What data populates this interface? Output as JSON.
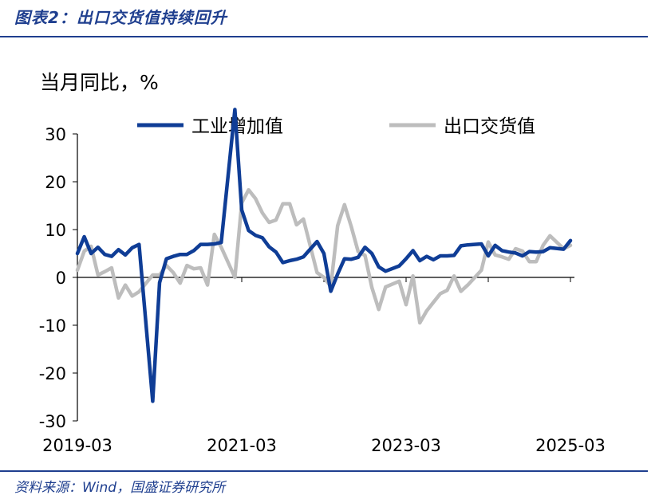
{
  "figure": {
    "title": "图表2：出口交货值持续回升",
    "source": "资料来源：Wind，国盛证券研究所"
  },
  "colors": {
    "accent": "#1f3f8f",
    "series_blue": "#0f3d96",
    "series_gray": "#bdbdbd",
    "axis": "#000000"
  },
  "chart_data": {
    "type": "line",
    "unit_label": "当月同比，%",
    "ylim": [
      -30,
      30
    ],
    "yticks": [
      -30,
      -20,
      -10,
      0,
      10,
      20,
      30
    ],
    "x_ticks_shown": [
      "2019-03",
      "2021-03",
      "2023-03",
      "2025-03"
    ],
    "x_range": [
      "2019-03",
      "2025-03"
    ],
    "grid": false,
    "legend_position": "top",
    "series": [
      {
        "name": "工业增加值",
        "color": "#0f3d96",
        "points": [
          [
            "2019-03",
            5.0
          ],
          [
            "2019-04",
            8.5
          ],
          [
            "2019-05",
            5.0
          ],
          [
            "2019-06",
            6.3
          ],
          [
            "2019-07",
            4.8
          ],
          [
            "2019-08",
            4.4
          ],
          [
            "2019-09",
            5.8
          ],
          [
            "2019-10",
            4.7
          ],
          [
            "2019-11",
            6.2
          ],
          [
            "2019-12",
            6.9
          ],
          [
            "2020-02",
            -25.9
          ],
          [
            "2020-03",
            -1.1
          ],
          [
            "2020-04",
            3.9
          ],
          [
            "2020-05",
            4.4
          ],
          [
            "2020-06",
            4.8
          ],
          [
            "2020-07",
            4.8
          ],
          [
            "2020-08",
            5.6
          ],
          [
            "2020-09",
            6.9
          ],
          [
            "2020-10",
            6.9
          ],
          [
            "2020-11",
            7.0
          ],
          [
            "2020-12",
            7.3
          ],
          [
            "2021-02",
            35.1
          ],
          [
            "2021-03",
            14.1
          ],
          [
            "2021-04",
            9.8
          ],
          [
            "2021-05",
            8.8
          ],
          [
            "2021-06",
            8.3
          ],
          [
            "2021-07",
            6.4
          ],
          [
            "2021-08",
            5.3
          ],
          [
            "2021-09",
            3.1
          ],
          [
            "2021-10",
            3.5
          ],
          [
            "2021-11",
            3.8
          ],
          [
            "2021-12",
            4.3
          ],
          [
            "2022-02",
            7.5
          ],
          [
            "2022-03",
            5.0
          ],
          [
            "2022-04",
            -2.9
          ],
          [
            "2022-05",
            0.7
          ],
          [
            "2022-06",
            3.9
          ],
          [
            "2022-07",
            3.8
          ],
          [
            "2022-08",
            4.2
          ],
          [
            "2022-09",
            6.3
          ],
          [
            "2022-10",
            5.0
          ],
          [
            "2022-11",
            2.2
          ],
          [
            "2022-12",
            1.3
          ],
          [
            "2023-02",
            2.4
          ],
          [
            "2023-03",
            3.9
          ],
          [
            "2023-04",
            5.6
          ],
          [
            "2023-05",
            3.5
          ],
          [
            "2023-06",
            4.4
          ],
          [
            "2023-07",
            3.7
          ],
          [
            "2023-08",
            4.5
          ],
          [
            "2023-09",
            4.5
          ],
          [
            "2023-10",
            4.6
          ],
          [
            "2023-11",
            6.6
          ],
          [
            "2023-12",
            6.8
          ],
          [
            "2024-02",
            7.0
          ],
          [
            "2024-03",
            4.5
          ],
          [
            "2024-04",
            6.7
          ],
          [
            "2024-05",
            5.6
          ],
          [
            "2024-06",
            5.3
          ],
          [
            "2024-07",
            5.1
          ],
          [
            "2024-08",
            4.5
          ],
          [
            "2024-09",
            5.4
          ],
          [
            "2024-10",
            5.3
          ],
          [
            "2024-11",
            5.4
          ],
          [
            "2024-12",
            6.2
          ],
          [
            "2025-02",
            5.9
          ],
          [
            "2025-03",
            7.7
          ]
        ]
      },
      {
        "name": "出口交货值",
        "color": "#bdbdbd",
        "points": [
          [
            "2019-03",
            1.5
          ],
          [
            "2019-04",
            5.5
          ],
          [
            "2019-05",
            6.5
          ],
          [
            "2019-06",
            0.5
          ],
          [
            "2019-07",
            1.2
          ],
          [
            "2019-08",
            2.0
          ],
          [
            "2019-09",
            -4.3
          ],
          [
            "2019-10",
            -1.6
          ],
          [
            "2019-11",
            -3.9
          ],
          [
            "2019-12",
            -3.0
          ],
          [
            "2020-02",
            0.5
          ],
          [
            "2020-03",
            0.5
          ],
          [
            "2020-04",
            2.5
          ],
          [
            "2020-05",
            1.0
          ],
          [
            "2020-06",
            -1.2
          ],
          [
            "2020-07",
            2.5
          ],
          [
            "2020-08",
            1.8
          ],
          [
            "2020-09",
            2.0
          ],
          [
            "2020-10",
            -1.6
          ],
          [
            "2020-11",
            9.0
          ],
          [
            "2020-12",
            6.3
          ],
          [
            "2021-02",
            0.0
          ],
          [
            "2021-03",
            15.6
          ],
          [
            "2021-04",
            18.3
          ],
          [
            "2021-05",
            16.5
          ],
          [
            "2021-06",
            13.5
          ],
          [
            "2021-07",
            11.5
          ],
          [
            "2021-08",
            12.0
          ],
          [
            "2021-09",
            15.4
          ],
          [
            "2021-10",
            15.4
          ],
          [
            "2021-11",
            11.0
          ],
          [
            "2021-12",
            12.2
          ],
          [
            "2022-02",
            1.0
          ],
          [
            "2022-03",
            0.0
          ],
          [
            "2022-04",
            -1.9
          ],
          [
            "2022-05",
            10.8
          ],
          [
            "2022-06",
            15.2
          ],
          [
            "2022-07",
            10.6
          ],
          [
            "2022-08",
            5.4
          ],
          [
            "2022-09",
            4.6
          ],
          [
            "2022-10",
            -2.1
          ],
          [
            "2022-11",
            -6.7
          ],
          [
            "2022-12",
            -2.0
          ],
          [
            "2023-02",
            -0.8
          ],
          [
            "2023-03",
            -5.7
          ],
          [
            "2023-04",
            0.3
          ],
          [
            "2023-05",
            -9.5
          ],
          [
            "2023-06",
            -7.0
          ],
          [
            "2023-07",
            -5.2
          ],
          [
            "2023-08",
            -3.4
          ],
          [
            "2023-09",
            -2.7
          ],
          [
            "2023-10",
            0.3
          ],
          [
            "2023-11",
            -2.9
          ],
          [
            "2023-12",
            -1.6
          ],
          [
            "2024-02",
            1.5
          ],
          [
            "2024-03",
            7.4
          ],
          [
            "2024-04",
            4.7
          ],
          [
            "2024-05",
            4.3
          ],
          [
            "2024-06",
            3.8
          ],
          [
            "2024-07",
            6.0
          ],
          [
            "2024-08",
            5.5
          ],
          [
            "2024-09",
            3.3
          ],
          [
            "2024-10",
            3.3
          ],
          [
            "2024-11",
            6.7
          ],
          [
            "2024-12",
            8.7
          ],
          [
            "2025-02",
            6.0
          ],
          [
            "2025-03",
            6.7
          ]
        ]
      }
    ]
  }
}
